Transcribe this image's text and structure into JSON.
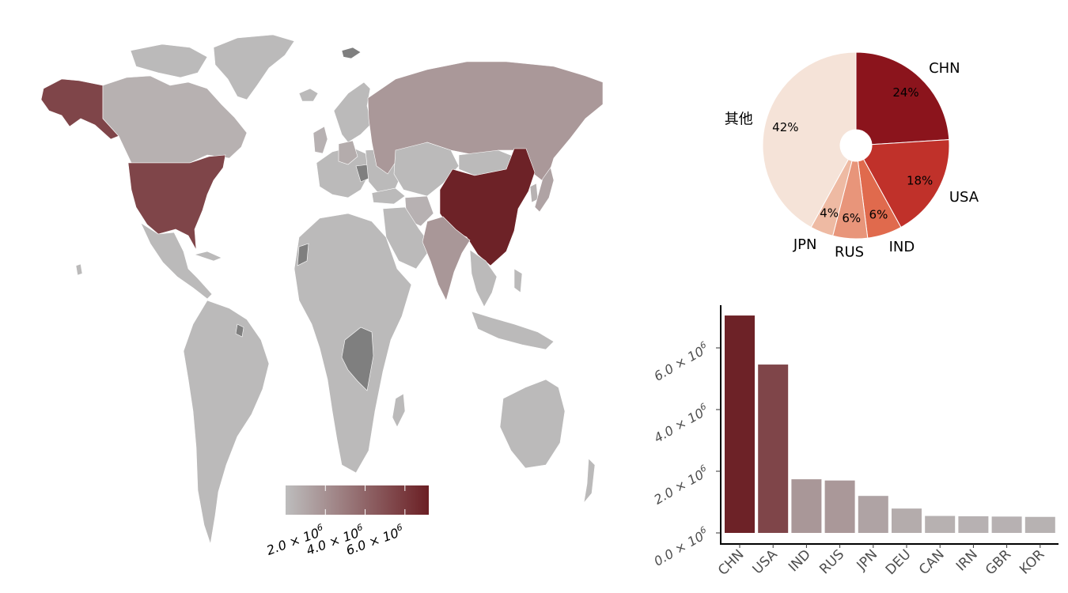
{
  "colors": {
    "low": "#bdbdbd",
    "high": "#6b1f24",
    "nodata": "#7f7f7f",
    "pie_slices": [
      "#8b141c",
      "#c0312a",
      "#e06a4d",
      "#e8957a",
      "#eebaa3",
      "#f5e3d8"
    ]
  },
  "chart_data": [
    {
      "type": "map",
      "fill_variable": "value",
      "countries": [
        {
          "code": "CHN",
          "value": 7050000
        },
        {
          "code": "USA",
          "value": 5460000
        },
        {
          "code": "IND",
          "value": 1740000
        },
        {
          "code": "RUS",
          "value": 1700000
        },
        {
          "code": "JPN",
          "value": 1200000
        },
        {
          "code": "DEU",
          "value": 790000
        },
        {
          "code": "CAN",
          "value": 550000
        },
        {
          "code": "IRN",
          "value": 540000
        },
        {
          "code": "GBR",
          "value": 530000
        },
        {
          "code": "KOR",
          "value": 520000
        }
      ],
      "legend": {
        "placement": "bottom",
        "range": [
          0,
          7200000
        ],
        "ticks": [
          2000000,
          4000000,
          6000000
        ],
        "tick_labels": [
          "2.0 × 10",
          "4.0 × 10",
          "6.0 × 10"
        ],
        "tick_exponent": "6"
      }
    },
    {
      "type": "pie",
      "donut": true,
      "slices": [
        {
          "label": "CHN",
          "value": 24,
          "pct_label": "24%"
        },
        {
          "label": "USA",
          "value": 18,
          "pct_label": "18%"
        },
        {
          "label": "IND",
          "value": 6,
          "pct_label": "6%"
        },
        {
          "label": "RUS",
          "value": 6,
          "pct_label": "6%"
        },
        {
          "label": "JPN",
          "value": 4,
          "pct_label": "4%"
        },
        {
          "label": "其他",
          "value": 42,
          "pct_label": "42%"
        }
      ]
    },
    {
      "type": "bar",
      "categories": [
        "CHN",
        "USA",
        "IND",
        "RUS",
        "JPN",
        "DEU",
        "CAN",
        "IRN",
        "GBR",
        "KOR"
      ],
      "values": [
        7050000,
        5460000,
        1740000,
        1700000,
        1200000,
        790000,
        550000,
        540000,
        530000,
        520000
      ],
      "ylim": [
        0,
        7200000
      ],
      "yticks": [
        0,
        2000000,
        4000000,
        6000000
      ],
      "ytick_labels": [
        "0.0 × 10",
        "2.0 × 10",
        "4.0 × 10",
        "6.0 × 10"
      ],
      "ytick_exponent": "6",
      "fill_scale": "same as map legend",
      "grid": false
    }
  ]
}
